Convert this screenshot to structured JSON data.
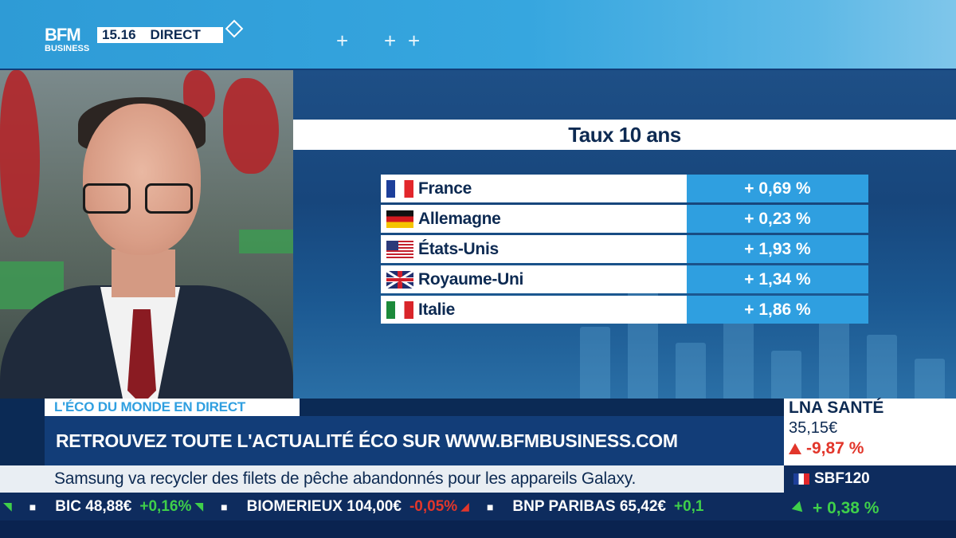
{
  "header": {
    "logo_top": "BFM",
    "logo_bottom": "BUSINESS",
    "time": "15.16",
    "live": "DIRECT"
  },
  "rates": {
    "title": "Taux 10 ans",
    "rows": [
      {
        "country": "France",
        "flag": "flag-fr",
        "value": "+ 0,69 %"
      },
      {
        "country": "Allemagne",
        "flag": "flag-de",
        "value": "+ 0,23 %"
      },
      {
        "country": "États-Unis",
        "flag": "flag-us",
        "value": "+ 1,93 %"
      },
      {
        "country": "Royaume-Uni",
        "flag": "flag-uk",
        "value": "+ 1,34 %"
      },
      {
        "country": "Italie",
        "flag": "flag-it",
        "value": "+ 1,86 %"
      }
    ]
  },
  "lower_third": {
    "label": "L'ÉCO DU MONDE EN DIRECT",
    "headline": "RETROUVEZ TOUTE L'ACTUALITÉ ÉCO SUR WWW.BFMBUSINESS.COM",
    "news": "Samsung va recycler des filets de pêche abandonnés pour les appareils Galaxy."
  },
  "ticker": [
    {
      "name": "BIC",
      "price": "48,88€",
      "change": "+0,16%",
      "direction": "up"
    },
    {
      "name": "BIOMERIEUX",
      "price": "104,00€",
      "change": "-0,05%",
      "direction": "down"
    },
    {
      "name": "BNP PARIBAS",
      "price": "65,42€",
      "change": "+0,1",
      "direction": "up"
    }
  ],
  "stock": {
    "name": "LNA SANTÉ",
    "price": "35,15€",
    "change": "-9,87 %",
    "direction": "down"
  },
  "index": {
    "name": "SBF120",
    "change": "+ 0,38 %",
    "direction": "up"
  },
  "colors": {
    "accent_blue": "#2f9fe0",
    "navy": "#0e2c5e",
    "positive": "#3fcf4a",
    "negative": "#e2362b"
  }
}
